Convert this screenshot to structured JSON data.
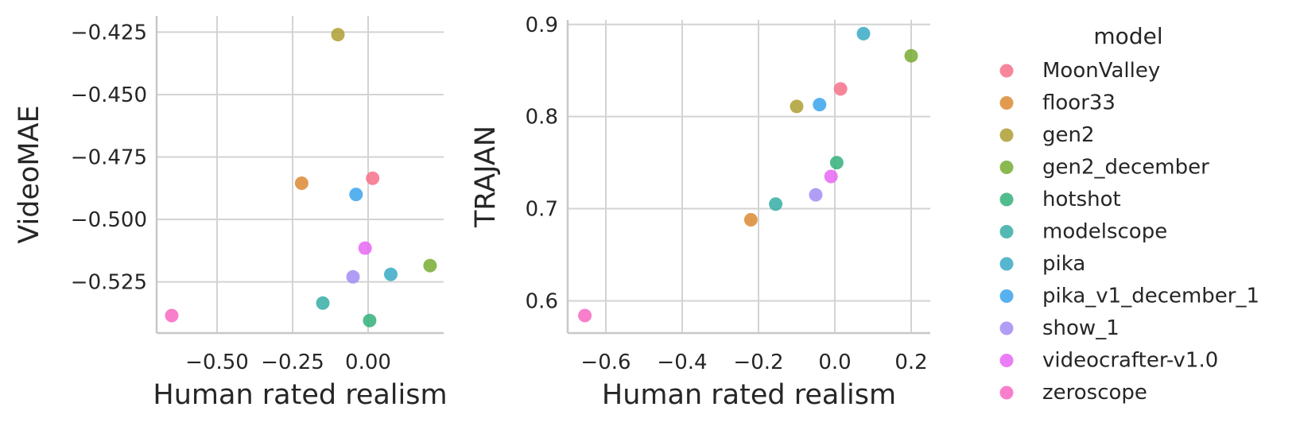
{
  "legend": {
    "title": "model",
    "entries": [
      {
        "name": "MoonValley",
        "color": "#f77189"
      },
      {
        "name": "floor33",
        "color": "#dc8932"
      },
      {
        "name": "gen2",
        "color": "#ae9d31"
      },
      {
        "name": "gen2_december",
        "color": "#77ab31"
      },
      {
        "name": "hotshot",
        "color": "#33b07a"
      },
      {
        "name": "modelscope",
        "color": "#36ada4"
      },
      {
        "name": "pika",
        "color": "#38a9c5"
      },
      {
        "name": "pika_v1_december_1",
        "color": "#3ba3ec"
      },
      {
        "name": "show_1",
        "color": "#a48cf4"
      },
      {
        "name": "videocrafter-v1.0",
        "color": "#e866f4"
      },
      {
        "name": "zeroscope",
        "color": "#f668c2"
      }
    ]
  },
  "chart_data": [
    {
      "type": "scatter",
      "title": "",
      "xlabel": "Human rated realism",
      "ylabel": "VideoMAE",
      "xlim": [
        -0.7,
        0.25
      ],
      "ylim": [
        -0.5455,
        -0.4185
      ],
      "xticks": [
        -0.5,
        -0.25,
        0.0
      ],
      "xtick_labels": [
        "−0.50",
        "−0.25",
        "0.00"
      ],
      "yticks": [
        -0.425,
        -0.45,
        -0.475,
        -0.5,
        -0.525
      ],
      "ytick_labels": [
        "−0.425",
        "−0.450",
        "−0.475",
        "−0.500",
        "−0.525"
      ],
      "grid": true,
      "points": [
        {
          "model": "MoonValley",
          "x": 0.015,
          "y": -0.4835
        },
        {
          "model": "floor33",
          "x": -0.22,
          "y": -0.4855
        },
        {
          "model": "gen2",
          "x": -0.1,
          "y": -0.426
        },
        {
          "model": "gen2_december",
          "x": 0.205,
          "y": -0.5185
        },
        {
          "model": "hotshot",
          "x": 0.005,
          "y": -0.5405
        },
        {
          "model": "modelscope",
          "x": -0.15,
          "y": -0.5335
        },
        {
          "model": "pika",
          "x": 0.075,
          "y": -0.522
        },
        {
          "model": "pika_v1_december_1",
          "x": -0.04,
          "y": -0.49
        },
        {
          "model": "show_1",
          "x": -0.05,
          "y": -0.523
        },
        {
          "model": "videocrafter-v1.0",
          "x": -0.01,
          "y": -0.5115
        },
        {
          "model": "zeroscope",
          "x": -0.65,
          "y": -0.5385
        }
      ]
    },
    {
      "type": "scatter",
      "title": "",
      "xlabel": "Human rated realism",
      "ylabel": "TRAJAN",
      "xlim": [
        -0.7,
        0.25
      ],
      "ylim": [
        0.565,
        0.905
      ],
      "xticks": [
        -0.6,
        -0.4,
        -0.2,
        0.0,
        0.2
      ],
      "xtick_labels": [
        "−0.6",
        "−0.4",
        "−0.2",
        "0.0",
        "0.2"
      ],
      "yticks": [
        0.6,
        0.7,
        0.8,
        0.9
      ],
      "ytick_labels": [
        "0.6",
        "0.7",
        "0.8",
        "0.9"
      ],
      "grid": true,
      "points": [
        {
          "model": "MoonValley",
          "x": 0.015,
          "y": 0.83
        },
        {
          "model": "floor33",
          "x": -0.22,
          "y": 0.688
        },
        {
          "model": "gen2",
          "x": -0.1,
          "y": 0.811
        },
        {
          "model": "gen2_december",
          "x": 0.2,
          "y": 0.866
        },
        {
          "model": "hotshot",
          "x": 0.005,
          "y": 0.75
        },
        {
          "model": "modelscope",
          "x": -0.155,
          "y": 0.705
        },
        {
          "model": "pika",
          "x": 0.075,
          "y": 0.89
        },
        {
          "model": "pika_v1_december_1",
          "x": -0.04,
          "y": 0.813
        },
        {
          "model": "show_1",
          "x": -0.05,
          "y": 0.715
        },
        {
          "model": "videocrafter-v1.0",
          "x": -0.01,
          "y": 0.735
        },
        {
          "model": "zeroscope",
          "x": -0.655,
          "y": 0.584
        }
      ]
    }
  ]
}
